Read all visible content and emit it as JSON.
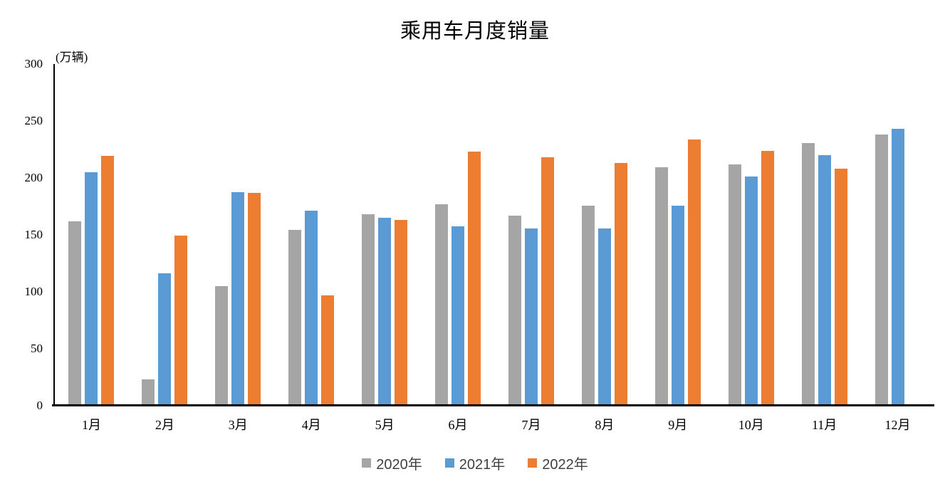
{
  "title": "乘用车月度销量",
  "y_axis_unit": "(万辆)",
  "chart_data": {
    "type": "bar",
    "title": "乘用车月度销量",
    "ylabel": "(万辆)",
    "xlabel": "",
    "ylim": [
      0,
      300
    ],
    "yticks": [
      0,
      50,
      100,
      150,
      200,
      250,
      300
    ],
    "grid": false,
    "legend_position": "bottom",
    "categories": [
      "1月",
      "2月",
      "3月",
      "4月",
      "5月",
      "6月",
      "7月",
      "8月",
      "9月",
      "10月",
      "11月",
      "12月"
    ],
    "series": [
      {
        "name": "2020年",
        "color": "#A5A5A5",
        "values": [
          161.4,
          22.4,
          104.5,
          153.6,
          167.4,
          176.4,
          166.5,
          175.3,
          208.8,
          211.0,
          229.7,
          237.5
        ]
      },
      {
        "name": "2021年",
        "color": "#5B9BD5",
        "values": [
          204.5,
          115.6,
          187.1,
          170.4,
          164.6,
          156.9,
          155.1,
          155.2,
          175.1,
          200.7,
          219.2,
          242.2
        ]
      },
      {
        "name": "2022年",
        "color": "#ED7D31",
        "values": [
          218.6,
          148.7,
          186.4,
          96.5,
          162.3,
          222.2,
          217.4,
          212.5,
          233.2,
          223.1,
          207.5,
          null
        ]
      }
    ]
  }
}
